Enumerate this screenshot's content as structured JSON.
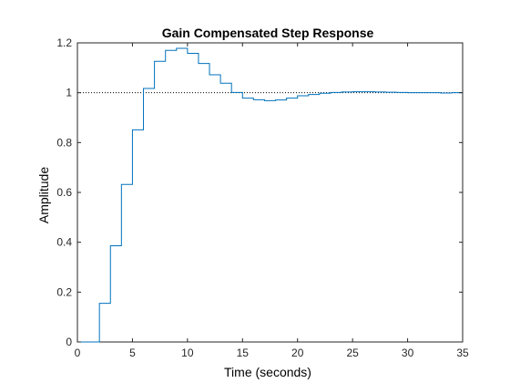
{
  "chart_data": {
    "type": "line",
    "title": "Gain Compensated Step Response",
    "xlabel": "Time (seconds)",
    "ylabel": "Amplitude",
    "xlim": [
      0,
      35
    ],
    "ylim": [
      0,
      1.2
    ],
    "xticks": [
      "0",
      "5",
      "10",
      "15",
      "20",
      "25",
      "30",
      "35"
    ],
    "yticks": [
      "0",
      "0.2",
      "0.4",
      "0.6",
      "0.8",
      "1",
      "1.2"
    ],
    "grid": false,
    "legend": "none",
    "reference_line": {
      "y": 1,
      "style": "dotted"
    },
    "series": [
      {
        "style": "stairs",
        "color": "#0072BD",
        "x": [
          0,
          1,
          2,
          3,
          4,
          5,
          6,
          7,
          8,
          9,
          10,
          11,
          12,
          13,
          14,
          15,
          16,
          17,
          18,
          19,
          20,
          21,
          22,
          23,
          24,
          25,
          26,
          27,
          28,
          29,
          30,
          31,
          32,
          33,
          34,
          35
        ],
        "values": [
          0,
          0,
          0.155,
          0.386,
          0.632,
          0.851,
          1.017,
          1.126,
          1.17,
          1.178,
          1.158,
          1.117,
          1.072,
          1.038,
          1.001,
          0.978,
          0.972,
          0.968,
          0.971,
          0.978,
          0.988,
          0.993,
          0.998,
          1.001,
          1.003,
          1.004,
          1.004,
          1.003,
          1.002,
          1.001,
          1.0,
          1.0,
          1.0,
          0.999,
          1.0,
          1.0
        ]
      }
    ]
  }
}
